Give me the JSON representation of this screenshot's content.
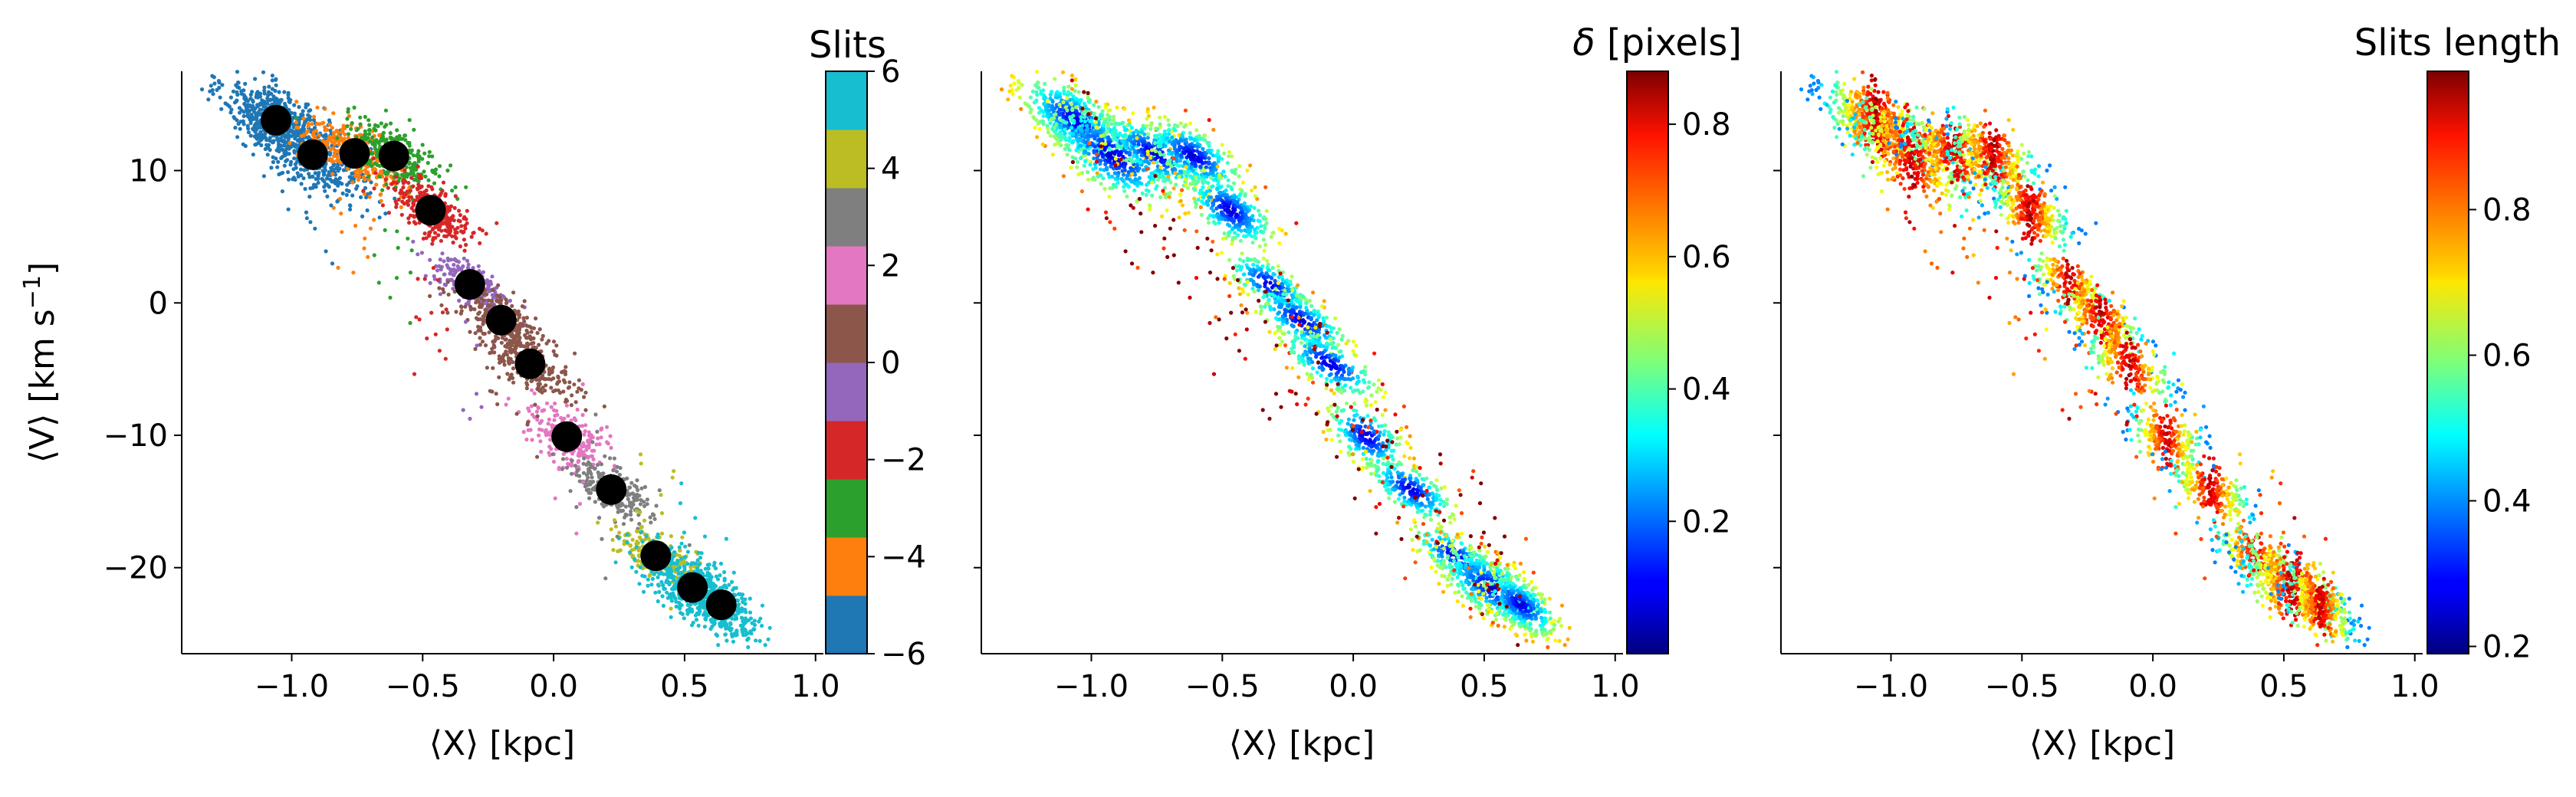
{
  "colors": {
    "tab10": [
      "#1f77b4",
      "#ff7f0e",
      "#2ca02c",
      "#d62728",
      "#9467bd",
      "#8c564b",
      "#e377c2",
      "#7f7f7f",
      "#bcbd22",
      "#17becf"
    ],
    "centroid": "#000000",
    "colormap": "jet"
  },
  "chart_data": [
    {
      "type": "scatter",
      "panel": "slits",
      "xlabel": "⟨X⟩ [kpc]",
      "ylabel": "⟨V⟩ [km s⁻¹]",
      "ylabel_main": "⟨V⟩ [km s",
      "ylabel_sup": "−1",
      "ylabel_close": "]",
      "xlim": [
        -1.42,
        1.03
      ],
      "ylim": [
        -26.5,
        17.5
      ],
      "xticks": [
        -1.0,
        -0.5,
        0.0,
        0.5,
        1.0
      ],
      "xtick_labels": [
        "−1.0",
        "−0.5",
        "0.0",
        "0.5",
        "1.0"
      ],
      "yticks": [
        10,
        0,
        -10,
        -20
      ],
      "ytick_labels": [
        "10",
        "0",
        "−10",
        "−20"
      ],
      "colorbar": {
        "title": "Slits",
        "range": [
          -6,
          6
        ],
        "ticks": [
          6,
          4,
          2,
          0,
          -2,
          -4,
          -6
        ],
        "tick_labels": [
          "6",
          "4",
          "2",
          "0",
          "−2",
          "−4",
          "−6"
        ],
        "colormap": "tab10 (discrete)"
      },
      "centroids": {
        "x": [
          -1.06,
          -0.92,
          -0.76,
          -0.61,
          -0.47,
          -0.32,
          -0.2,
          -0.09,
          0.05,
          0.22,
          0.39,
          0.53,
          0.64
        ],
        "y": [
          13.8,
          11.2,
          11.3,
          11.1,
          7.0,
          1.4,
          -1.3,
          -4.6,
          -10.1,
          -14.1,
          -19.1,
          -21.5,
          -22.8
        ]
      }
    },
    {
      "type": "scatter",
      "panel": "delta",
      "xlabel": "⟨X⟩ [kpc]",
      "xlim": [
        -1.42,
        1.03
      ],
      "ylim": [
        -26.5,
        17.5
      ],
      "xticks": [
        -1.0,
        -0.5,
        0.0,
        0.5,
        1.0
      ],
      "xtick_labels": [
        "−1.0",
        "−0.5",
        "0.0",
        "0.5",
        "1.0"
      ],
      "yticks": [
        10,
        0,
        -10,
        -20
      ],
      "colorbar": {
        "title": "δ [pixels]",
        "title_symbol": "δ",
        "title_rest": " [pixels]",
        "range": [
          0.0,
          0.88
        ],
        "ticks": [
          0.8,
          0.6,
          0.4,
          0.2
        ],
        "tick_labels": [
          "0.8",
          "0.6",
          "0.4",
          "0.2"
        ],
        "colormap": "jet"
      }
    },
    {
      "type": "scatter",
      "panel": "length",
      "xlabel": "⟨X⟩ [kpc]",
      "xlim": [
        -1.42,
        1.03
      ],
      "ylim": [
        -26.5,
        17.5
      ],
      "xticks": [
        -1.0,
        -0.5,
        0.0,
        0.5,
        1.0
      ],
      "xtick_labels": [
        "−1.0",
        "−0.5",
        "0.0",
        "0.5",
        "1.0"
      ],
      "yticks": [
        10,
        0,
        -10,
        -20
      ],
      "colorbar": {
        "title": "Slits length",
        "range": [
          0.19,
          0.99
        ],
        "ticks": [
          0.8,
          0.6,
          0.4,
          0.2
        ],
        "tick_labels": [
          "0.8",
          "0.6",
          "0.4",
          "0.2"
        ],
        "colormap": "jet"
      }
    }
  ]
}
